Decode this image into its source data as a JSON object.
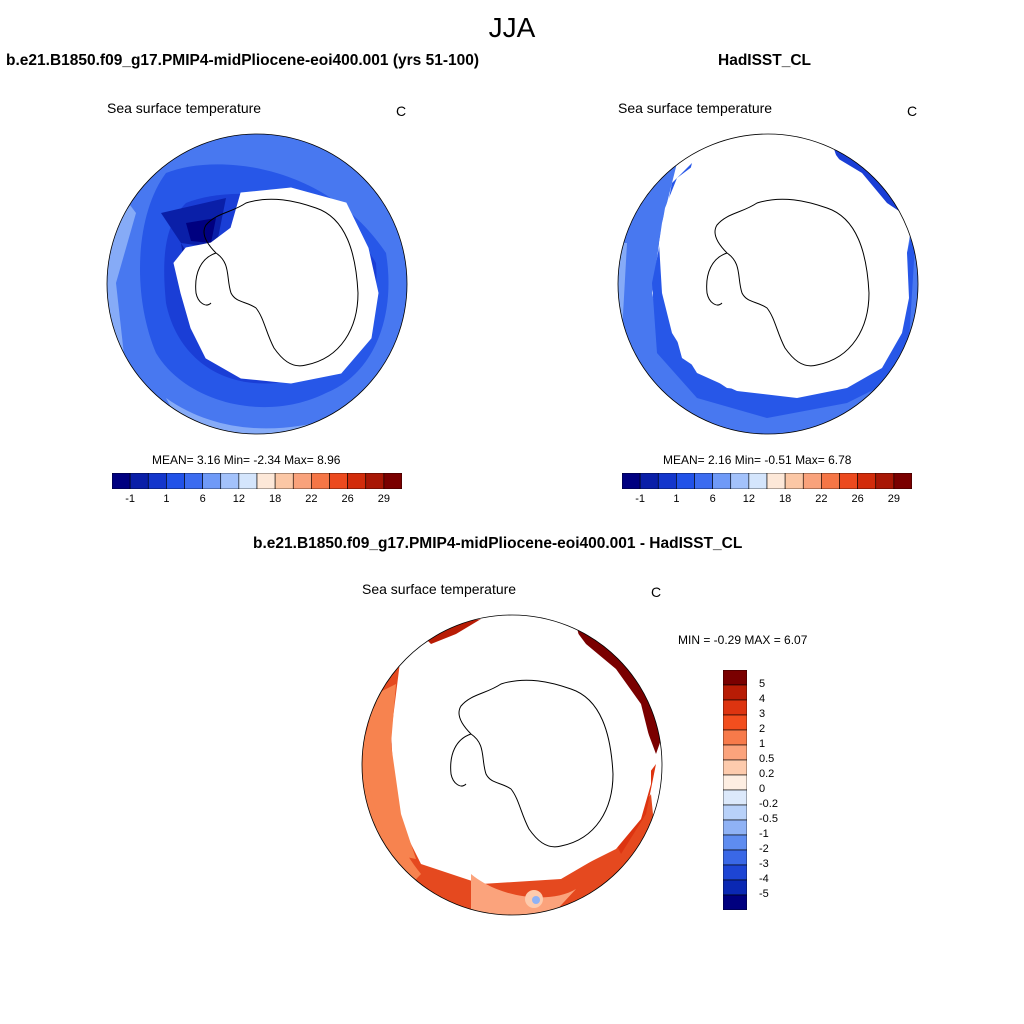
{
  "figure": {
    "title": "JJA"
  },
  "panels": [
    {
      "title": "b.e21.B1850.f09_g17.PMIP4-midPliocene-eoi400.001 (yrs 51-100)",
      "variable": "Sea surface temperature",
      "units": "C",
      "stats": "MEAN=   3.16  Min=  -2.34  Max=   8.96",
      "stats_values": {
        "mean": 3.16,
        "min": -2.34,
        "max": 8.96
      }
    },
    {
      "title": "HadISST_CL",
      "variable": "Sea surface temperature",
      "units": "C",
      "stats": "MEAN=   2.16  Min=  -0.51  Max=   6.78",
      "stats_values": {
        "mean": 2.16,
        "min": -0.51,
        "max": 6.78
      }
    },
    {
      "title": "b.e21.B1850.f09_g17.PMIP4-midPliocene-eoi400.001 - HadISST_CL",
      "variable": "Sea surface temperature",
      "units": "C",
      "stats": "MIN =  -0.29 MAX =   6.07",
      "stats_values": {
        "min": -0.29,
        "max": 6.07
      }
    }
  ],
  "colorbar_abs": {
    "tick_labels": [
      "-1",
      "1",
      "6",
      "12",
      "18",
      "22",
      "26",
      "29"
    ],
    "colors": [
      "#000080",
      "#0a1fa8",
      "#1336cc",
      "#2152e8",
      "#3c6cf0",
      "#6f9af7",
      "#a3c2fb",
      "#d4e5fc",
      "#fde8d8",
      "#fbc7a5",
      "#f9a27b",
      "#f57646",
      "#ec4a1e",
      "#d22c0b",
      "#a81705",
      "#7a0000"
    ]
  },
  "colorbar_diff": {
    "labels": [
      "5",
      "4",
      "3",
      "2",
      "1",
      "0.5",
      "0.2",
      "0",
      "-0.2",
      "-0.5",
      "-1",
      "-2",
      "-3",
      "-4",
      "-5"
    ],
    "colors": [
      "#7a0000",
      "#b81c05",
      "#dd3410",
      "#f24e1e",
      "#f77a4a",
      "#fba37c",
      "#fdcbad",
      "#fdeee2",
      "#dce9fb",
      "#b8d1f9",
      "#8fb2f5",
      "#5e8cf0",
      "#3a68e6",
      "#1d45d4",
      "#0a28b3",
      "#00007f"
    ]
  }
}
